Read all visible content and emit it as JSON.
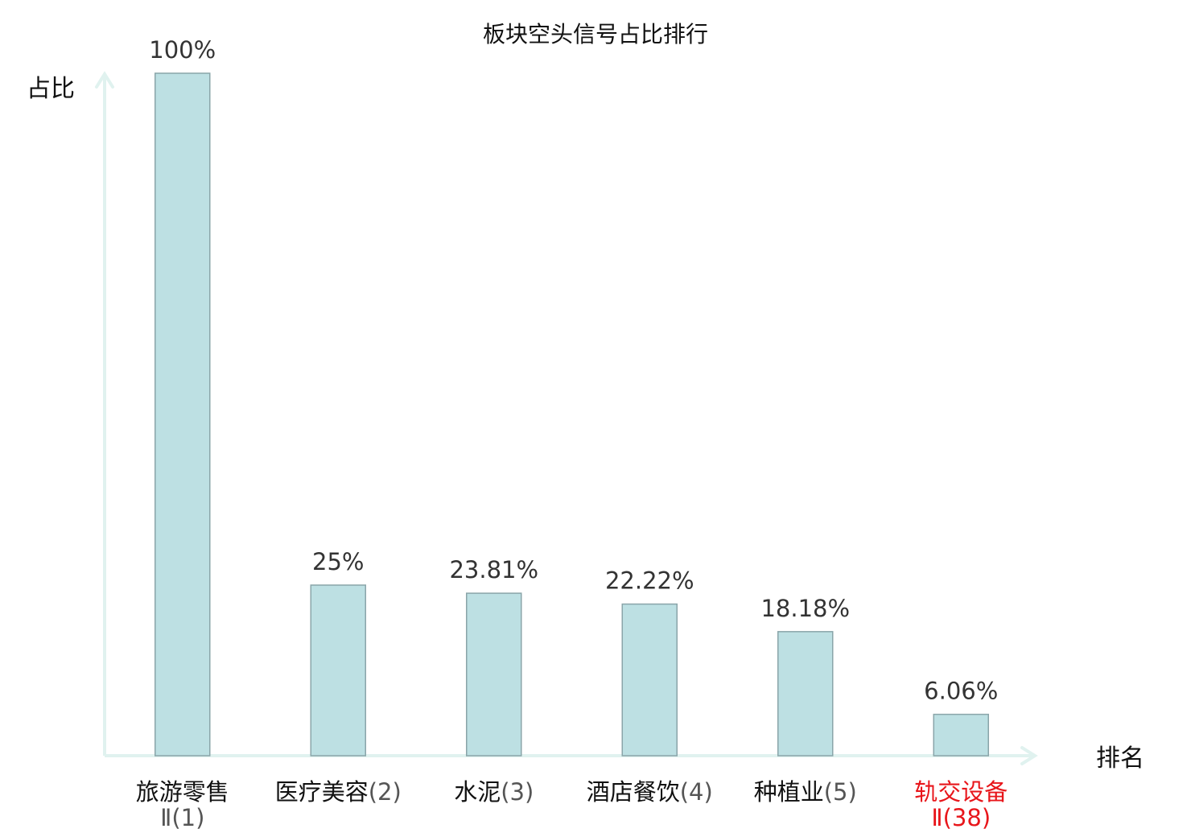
{
  "chart_data": {
    "type": "bar",
    "title": "板块空头信号占比排行",
    "ylabel": "占比",
    "xlabel": "排名",
    "ylim": [
      0,
      100
    ],
    "grid": false,
    "categories": [
      {
        "name": "旅游零售",
        "rank": "Ⅱ(1)",
        "highlight": false
      },
      {
        "name": "医疗美容",
        "rank": "(2)",
        "highlight": false
      },
      {
        "name": "水泥",
        "rank": "(3)",
        "highlight": false
      },
      {
        "name": "酒店餐饮",
        "rank": "(4)",
        "highlight": false
      },
      {
        "name": "种植业",
        "rank": "(5)",
        "highlight": false
      },
      {
        "name": "轨交设备",
        "rank": "Ⅱ(38)",
        "highlight": true
      }
    ],
    "values": [
      100,
      25,
      23.81,
      22.22,
      18.18,
      6.06
    ],
    "value_labels": [
      "100%",
      "25%",
      "23.81%",
      "22.22%",
      "18.18%",
      "6.06%"
    ],
    "colors": {
      "bar_fill": "#bde0e3",
      "bar_stroke": "#8aa5a9",
      "axis": "#e0f2ef",
      "highlight_text": "#e8161b"
    }
  }
}
